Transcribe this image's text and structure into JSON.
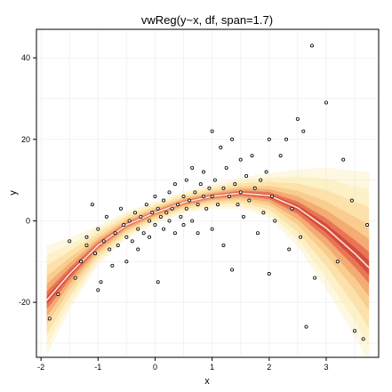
{
  "chart_data": {
    "type": "scatter",
    "title": "vwReg(y~x, df, span=1.7)",
    "xlabel": "x",
    "ylabel": "y",
    "xlim": [
      -2.08,
      3.92
    ],
    "ylim": [
      -33.5,
      47
    ],
    "x_ticks": [
      -2,
      -1,
      0,
      1,
      2,
      3
    ],
    "y_ticks": [
      -20,
      0,
      20,
      40
    ],
    "grid": true,
    "legend": "none",
    "colors": {
      "background": "#ffffff",
      "grid": "#f2f2f2",
      "band_outer": "#fde8a8",
      "band_inner": "#f6b46f",
      "band_core": "#e0483c",
      "fit_line": "#fbe6d8",
      "points": "#000000"
    },
    "fit": {
      "x": [
        -1.9,
        -1.5,
        -1.0,
        -0.5,
        0.0,
        0.5,
        1.0,
        1.5,
        2.0,
        2.5,
        3.0,
        3.5,
        3.75
      ],
      "y": [
        -19.5,
        -13.0,
        -6.0,
        -1.0,
        2.0,
        4.5,
        6.0,
        6.8,
        6.2,
        3.2,
        -1.8,
        -8.0,
        -11.5
      ],
      "band_halfwidth": [
        10.0,
        6.5,
        3.5,
        2.5,
        2.0,
        2.0,
        2.2,
        2.8,
        4.0,
        7.0,
        11.0,
        15.0,
        17.5
      ]
    },
    "points": [
      {
        "x": -1.85,
        "y": -24
      },
      {
        "x": -1.7,
        "y": -18
      },
      {
        "x": -1.5,
        "y": -5
      },
      {
        "x": -1.4,
        "y": -14
      },
      {
        "x": -1.3,
        "y": -10
      },
      {
        "x": -1.2,
        "y": -6
      },
      {
        "x": -1.2,
        "y": -4
      },
      {
        "x": -1.1,
        "y": 4
      },
      {
        "x": -1.05,
        "y": -8
      },
      {
        "x": -1.0,
        "y": -2
      },
      {
        "x": -1.0,
        "y": -17
      },
      {
        "x": -0.95,
        "y": -15
      },
      {
        "x": -0.9,
        "y": -5
      },
      {
        "x": -0.85,
        "y": 1
      },
      {
        "x": -0.8,
        "y": -7
      },
      {
        "x": -0.75,
        "y": -11
      },
      {
        "x": -0.7,
        "y": -3
      },
      {
        "x": -0.65,
        "y": -6
      },
      {
        "x": -0.6,
        "y": 3
      },
      {
        "x": -0.55,
        "y": -1
      },
      {
        "x": -0.5,
        "y": -4
      },
      {
        "x": -0.5,
        "y": -10
      },
      {
        "x": -0.45,
        "y": 0
      },
      {
        "x": -0.4,
        "y": -5
      },
      {
        "x": -0.35,
        "y": 2
      },
      {
        "x": -0.3,
        "y": -2
      },
      {
        "x": -0.3,
        "y": -7
      },
      {
        "x": -0.25,
        "y": 1
      },
      {
        "x": -0.2,
        "y": -3
      },
      {
        "x": -0.15,
        "y": 4
      },
      {
        "x": -0.1,
        "y": 0
      },
      {
        "x": -0.1,
        "y": -4
      },
      {
        "x": -0.05,
        "y": 2
      },
      {
        "x": 0.0,
        "y": 6
      },
      {
        "x": 0.0,
        "y": -1
      },
      {
        "x": 0.05,
        "y": 3
      },
      {
        "x": 0.05,
        "y": -15
      },
      {
        "x": 0.1,
        "y": 1
      },
      {
        "x": 0.15,
        "y": 5
      },
      {
        "x": 0.15,
        "y": -2
      },
      {
        "x": 0.2,
        "y": 2
      },
      {
        "x": 0.25,
        "y": 7
      },
      {
        "x": 0.25,
        "y": 0
      },
      {
        "x": 0.3,
        "y": 3
      },
      {
        "x": 0.35,
        "y": -3
      },
      {
        "x": 0.35,
        "y": 9
      },
      {
        "x": 0.4,
        "y": 4
      },
      {
        "x": 0.45,
        "y": 1
      },
      {
        "x": 0.5,
        "y": 6
      },
      {
        "x": 0.5,
        "y": -1
      },
      {
        "x": 0.55,
        "y": 10
      },
      {
        "x": 0.55,
        "y": 3
      },
      {
        "x": 0.6,
        "y": 5
      },
      {
        "x": 0.65,
        "y": 0
      },
      {
        "x": 0.65,
        "y": 13
      },
      {
        "x": 0.7,
        "y": 7
      },
      {
        "x": 0.75,
        "y": 4
      },
      {
        "x": 0.75,
        "y": -3
      },
      {
        "x": 0.8,
        "y": 9
      },
      {
        "x": 0.85,
        "y": 6
      },
      {
        "x": 0.85,
        "y": 12
      },
      {
        "x": 0.9,
        "y": 3
      },
      {
        "x": 0.95,
        "y": 8
      },
      {
        "x": 1.0,
        "y": 22
      },
      {
        "x": 1.0,
        "y": 6
      },
      {
        "x": 1.0,
        "y": -2
      },
      {
        "x": 1.05,
        "y": 10
      },
      {
        "x": 1.1,
        "y": 4
      },
      {
        "x": 1.15,
        "y": 18
      },
      {
        "x": 1.2,
        "y": 8
      },
      {
        "x": 1.2,
        "y": -6
      },
      {
        "x": 1.25,
        "y": 13
      },
      {
        "x": 1.3,
        "y": 6
      },
      {
        "x": 1.35,
        "y": 20
      },
      {
        "x": 1.35,
        "y": -12
      },
      {
        "x": 1.4,
        "y": 9
      },
      {
        "x": 1.45,
        "y": 4
      },
      {
        "x": 1.5,
        "y": 15
      },
      {
        "x": 1.5,
        "y": 7
      },
      {
        "x": 1.55,
        "y": 1
      },
      {
        "x": 1.6,
        "y": 11
      },
      {
        "x": 1.65,
        "y": 5
      },
      {
        "x": 1.7,
        "y": 16
      },
      {
        "x": 1.75,
        "y": 8
      },
      {
        "x": 1.8,
        "y": -3
      },
      {
        "x": 1.85,
        "y": 10
      },
      {
        "x": 1.9,
        "y": 2
      },
      {
        "x": 1.95,
        "y": 12
      },
      {
        "x": 2.0,
        "y": 20
      },
      {
        "x": 2.0,
        "y": -13
      },
      {
        "x": 2.05,
        "y": 6
      },
      {
        "x": 2.1,
        "y": 0
      },
      {
        "x": 2.2,
        "y": 16
      },
      {
        "x": 2.3,
        "y": 20
      },
      {
        "x": 2.35,
        "y": -7
      },
      {
        "x": 2.4,
        "y": 3
      },
      {
        "x": 2.5,
        "y": 25
      },
      {
        "x": 2.55,
        "y": -4
      },
      {
        "x": 2.6,
        "y": 22
      },
      {
        "x": 2.65,
        "y": -26
      },
      {
        "x": 2.75,
        "y": 43
      },
      {
        "x": 2.8,
        "y": -14
      },
      {
        "x": 3.0,
        "y": 29
      },
      {
        "x": 3.2,
        "y": -10
      },
      {
        "x": 3.3,
        "y": 15
      },
      {
        "x": 3.45,
        "y": 5
      },
      {
        "x": 3.5,
        "y": -27
      },
      {
        "x": 3.65,
        "y": -29
      },
      {
        "x": 3.72,
        "y": -1
      }
    ]
  }
}
